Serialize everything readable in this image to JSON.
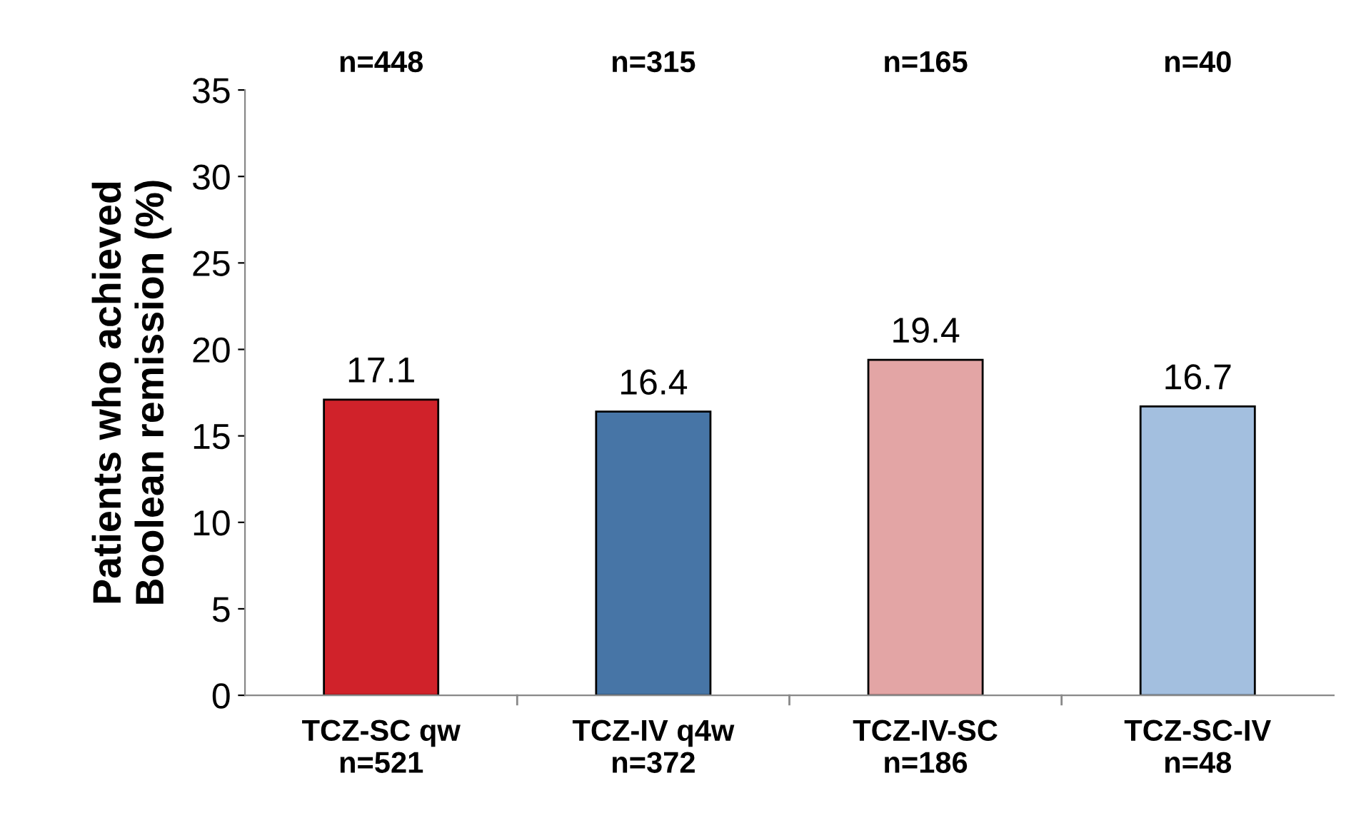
{
  "chart_data": {
    "type": "bar",
    "ylabel": "Patients who achieved\nBoolean remission (%)",
    "categories": [
      "TCZ-SC qw\nn=521",
      "TCZ-IV q4w\nn=372",
      "TCZ-IV-SC\nn=186",
      "TCZ-SC-IV\nn=48"
    ],
    "values": [
      17.1,
      16.4,
      19.4,
      16.7
    ],
    "colors": [
      "#d0222a",
      "#4775a6",
      "#e3a5a5",
      "#a3bfdf"
    ],
    "ylim": [
      0,
      35
    ],
    "yticks": [
      0,
      5,
      10,
      15,
      20,
      25,
      30,
      35
    ],
    "data_labels": true,
    "grid": false,
    "annotations": [
      "n=448",
      "n=315",
      "n=165",
      "n=40"
    ]
  }
}
